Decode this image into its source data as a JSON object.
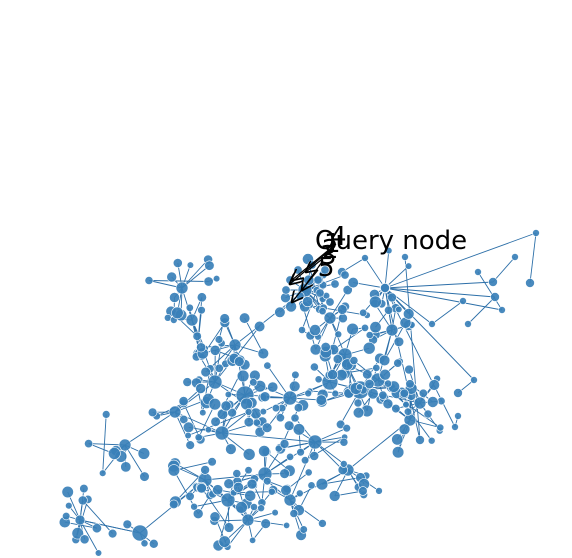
{
  "diagram": {
    "type": "network-graph",
    "node_color": "#3a80b8",
    "edge_color": "#2c6fa8",
    "query_label": "Query node",
    "annotations": [
      "1",
      "2",
      "3",
      "4",
      "5"
    ]
  }
}
